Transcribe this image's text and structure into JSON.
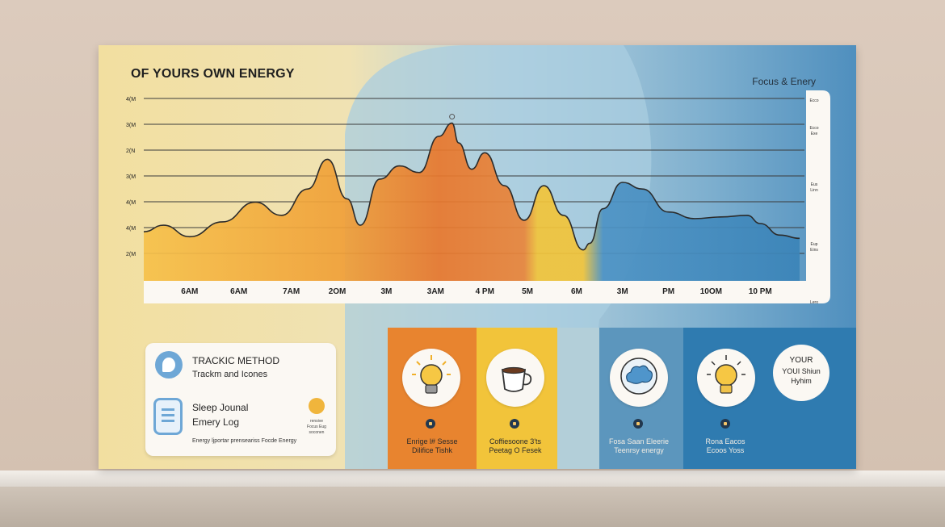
{
  "board": {
    "title": "OF YOURS OWN ENERGY",
    "legend_title": "Focus & Enery",
    "right_scale_labels": [
      "Ecco",
      "Ecco\nExe",
      "Eus\nLinn",
      "Eup\nEins",
      "Lero"
    ]
  },
  "colors": {
    "warm_yellow": "#f2dc8c",
    "orange": "#e8842f",
    "yellow": "#f2c43a",
    "light_blue": "#a8cadb",
    "mid_blue": "#5c96bd",
    "dark_blue": "#2f7bb0"
  },
  "chart_data": {
    "type": "area",
    "title": "OF YOURS OWN ENERGY",
    "y_tick_labels": [
      "4(M",
      "3(M",
      "2(N",
      "3(M",
      "4(M",
      "4(M",
      "2(M"
    ],
    "x_tick_labels": [
      "6AM",
      "6AM",
      "7AM",
      "2OM",
      "3M",
      "3AM",
      "4 PM",
      "5M",
      "6M",
      "3M",
      "PM",
      "10OM",
      "10 PM"
    ],
    "grid": true,
    "ylim": [
      0,
      100
    ],
    "series": [
      {
        "x": [
          0,
          0.03,
          0.07,
          0.12,
          0.17,
          0.21,
          0.25,
          0.28,
          0.31,
          0.33,
          0.36,
          0.39,
          0.42,
          0.45,
          0.47,
          0.48,
          0.5,
          0.52,
          0.55,
          0.58,
          0.61,
          0.64,
          0.67,
          0.68,
          0.7,
          0.73,
          0.76,
          0.8,
          0.84,
          0.88,
          0.92,
          0.94,
          0.97,
          1.0
        ],
        "y": [
          20,
          24,
          17,
          26,
          38,
          30,
          46,
          64,
          40,
          24,
          52,
          60,
          56,
          78,
          86,
          74,
          58,
          68,
          48,
          27,
          48,
          30,
          9,
          13,
          34,
          50,
          46,
          32,
          28,
          29,
          30,
          25,
          18,
          16
        ]
      }
    ]
  },
  "tracking_card": {
    "method_title": "TRACKIC METHOD",
    "method_sub": "Trackm and Icones",
    "journal_title": "Sleep Jounal",
    "journal_sub": "Emery Log",
    "footer": "Energy ljportar prenseariss Focde Energy",
    "dot_caption": "rensive\nFocus Eug\nsoconen"
  },
  "columns": [
    {
      "icon": "lightbulb-icon",
      "caption": "Enrige l# Sesse\nDilifice Tishk",
      "bg": "#e8842f"
    },
    {
      "icon": "coffee-cup-icon",
      "caption": "Coffiesoone 3'ts\nPeetag O Fesek",
      "bg": "#f2c43a"
    },
    {
      "icon": "cloud-icon",
      "caption": "Fosa Saan Eleerie\nTeenrsy energy",
      "bg": "#5c96bd"
    },
    {
      "icon": "lightbulb-icon",
      "caption": "Rona Eacos\nEcoos Yoss",
      "bg": "#2f7bb0"
    }
  ],
  "rhythm": {
    "line1": "YOUR",
    "line2": "YOUI Shiun",
    "line3": "Hyhim"
  }
}
